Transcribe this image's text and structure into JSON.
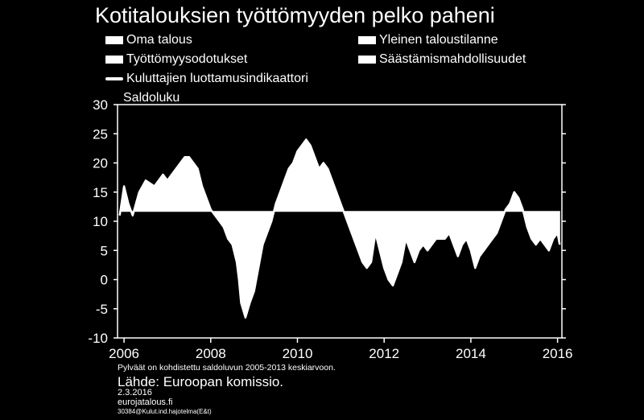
{
  "title": "Kotitalouksien työttömyyden pelko paheni",
  "legend": [
    {
      "label": "Oma talous",
      "kind": "bar"
    },
    {
      "label": "Yleinen taloustilanne",
      "kind": "bar"
    },
    {
      "label": "Työttömyysodotukset",
      "kind": "bar"
    },
    {
      "label": "Säästämismahdollisuudet",
      "kind": "bar"
    },
    {
      "label": "Kuluttajien luottamusindikaattori",
      "kind": "line"
    }
  ],
  "unit_label": "Saldoluku",
  "footnote": "Pylväät on kohdistettu saldoluvun 2005-2013 keskiarvoon.",
  "source": "Lähde: Euroopan komissio.",
  "date": "2.3.2016",
  "site": "eurojatalous.fi",
  "code": "30384@Kulut.ind.hajotelma(E&t)",
  "colors": {
    "background": "#000000",
    "plot_background": "#ffffff",
    "series": "#ffffff"
  },
  "chart_data": {
    "type": "area",
    "title": "Kotitalouksien työttömyyden pelko paheni",
    "ylabel": "Saldoluku",
    "ylim": [
      -10,
      30
    ],
    "yticks": [
      30,
      25,
      20,
      15,
      10,
      5,
      0,
      -5,
      -10
    ],
    "xlim": [
      2005.85,
      2016.1
    ],
    "xticks": [
      2006,
      2008,
      2010,
      2012,
      2014,
      2016
    ],
    "baseline": 11.7,
    "series": [
      {
        "name": "Kuluttajien luottamusindikaattori",
        "points": [
          [
            2005.9,
            11
          ],
          [
            2006.0,
            16
          ],
          [
            2006.1,
            13
          ],
          [
            2006.2,
            11
          ],
          [
            2006.35,
            15
          ],
          [
            2006.5,
            17
          ],
          [
            2006.7,
            16
          ],
          [
            2006.9,
            18
          ],
          [
            2007.0,
            17
          ],
          [
            2007.2,
            19
          ],
          [
            2007.4,
            21
          ],
          [
            2007.5,
            21
          ],
          [
            2007.7,
            19
          ],
          [
            2007.8,
            16
          ],
          [
            2007.9,
            14
          ],
          [
            2008.0,
            12
          ],
          [
            2008.1,
            11
          ],
          [
            2008.2,
            10
          ],
          [
            2008.3,
            9
          ],
          [
            2008.4,
            7
          ],
          [
            2008.5,
            6
          ],
          [
            2008.6,
            3
          ],
          [
            2008.65,
            0
          ],
          [
            2008.7,
            -4
          ],
          [
            2008.8,
            -6.5
          ],
          [
            2008.9,
            -4
          ],
          [
            2009.0,
            -2
          ],
          [
            2009.1,
            2
          ],
          [
            2009.2,
            6
          ],
          [
            2009.3,
            8
          ],
          [
            2009.4,
            10
          ],
          [
            2009.5,
            13
          ],
          [
            2009.6,
            15
          ],
          [
            2009.7,
            17
          ],
          [
            2009.8,
            19
          ],
          [
            2009.9,
            20
          ],
          [
            2010.0,
            22
          ],
          [
            2010.1,
            23
          ],
          [
            2010.2,
            24
          ],
          [
            2010.3,
            23
          ],
          [
            2010.4,
            21
          ],
          [
            2010.5,
            19
          ],
          [
            2010.6,
            20
          ],
          [
            2010.7,
            19
          ],
          [
            2010.8,
            17
          ],
          [
            2010.9,
            15
          ],
          [
            2011.0,
            13
          ],
          [
            2011.1,
            11
          ],
          [
            2011.2,
            9
          ],
          [
            2011.3,
            7
          ],
          [
            2011.4,
            5
          ],
          [
            2011.5,
            3
          ],
          [
            2011.6,
            2
          ],
          [
            2011.7,
            3
          ],
          [
            2011.8,
            8
          ],
          [
            2011.9,
            5
          ],
          [
            2012.0,
            2
          ],
          [
            2012.1,
            0
          ],
          [
            2012.2,
            -1
          ],
          [
            2012.3,
            1
          ],
          [
            2012.4,
            3
          ],
          [
            2012.5,
            7
          ],
          [
            2012.6,
            5
          ],
          [
            2012.7,
            3
          ],
          [
            2012.8,
            5
          ],
          [
            2012.9,
            6
          ],
          [
            2013.0,
            5
          ],
          [
            2013.1,
            6
          ],
          [
            2013.2,
            7
          ],
          [
            2013.3,
            7
          ],
          [
            2013.4,
            7
          ],
          [
            2013.5,
            8
          ],
          [
            2013.6,
            6
          ],
          [
            2013.7,
            4
          ],
          [
            2013.8,
            6
          ],
          [
            2013.9,
            7
          ],
          [
            2014.0,
            5
          ],
          [
            2014.1,
            2
          ],
          [
            2014.2,
            4
          ],
          [
            2014.3,
            5
          ],
          [
            2014.4,
            6
          ],
          [
            2014.5,
            7
          ],
          [
            2014.6,
            8
          ],
          [
            2014.7,
            10
          ],
          [
            2014.8,
            12
          ],
          [
            2014.9,
            13
          ],
          [
            2015.0,
            15
          ],
          [
            2015.1,
            14
          ],
          [
            2015.2,
            12
          ],
          [
            2015.3,
            9
          ],
          [
            2015.4,
            7
          ],
          [
            2015.5,
            6
          ],
          [
            2015.6,
            7
          ],
          [
            2015.7,
            6
          ],
          [
            2015.8,
            5
          ],
          [
            2015.9,
            7
          ],
          [
            2016.0,
            8
          ],
          [
            2016.05,
            6
          ]
        ]
      }
    ]
  }
}
